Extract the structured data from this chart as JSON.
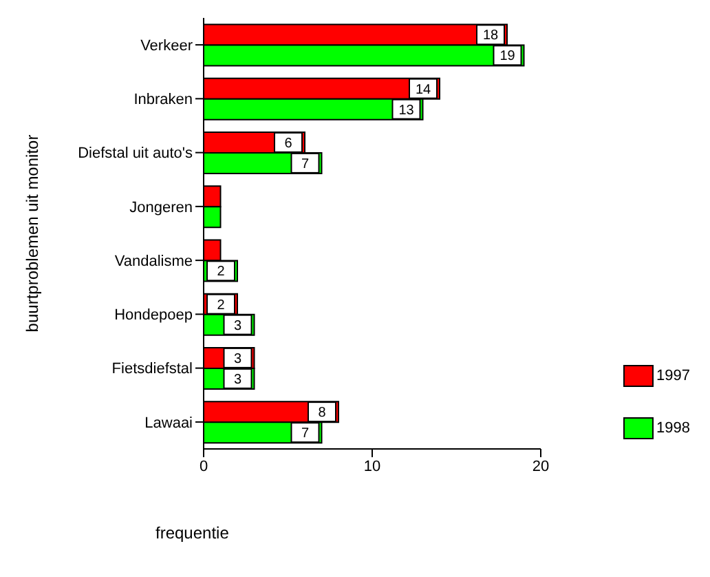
{
  "chart_data": {
    "type": "bar",
    "orientation": "horizontal",
    "xlabel": "frequentie",
    "ylabel": "buurtproblemen uit monitor",
    "categories": [
      "Verkeer",
      "Inbraken",
      "Diefstal uit auto's",
      "Jongeren",
      "Vandalisme",
      "Hondepoep",
      "Fietsdiefstal",
      "Lawaai"
    ],
    "series": [
      {
        "name": "1997",
        "color": "#ff0000",
        "values": [
          18,
          14,
          6,
          1,
          1,
          2,
          3,
          8
        ],
        "value_labels": [
          "18",
          "14",
          "6",
          null,
          null,
          "2",
          "3",
          "8"
        ]
      },
      {
        "name": "1998",
        "color": "#00ff00",
        "values": [
          19,
          13,
          7,
          1,
          2,
          3,
          3,
          7
        ],
        "value_labels": [
          "19",
          "13",
          "7",
          null,
          "2",
          "3",
          "3",
          "7"
        ]
      }
    ],
    "xlim": [
      0,
      20
    ],
    "xticks": [
      0,
      10,
      20
    ],
    "legend": "bottom right",
    "grid": false
  }
}
